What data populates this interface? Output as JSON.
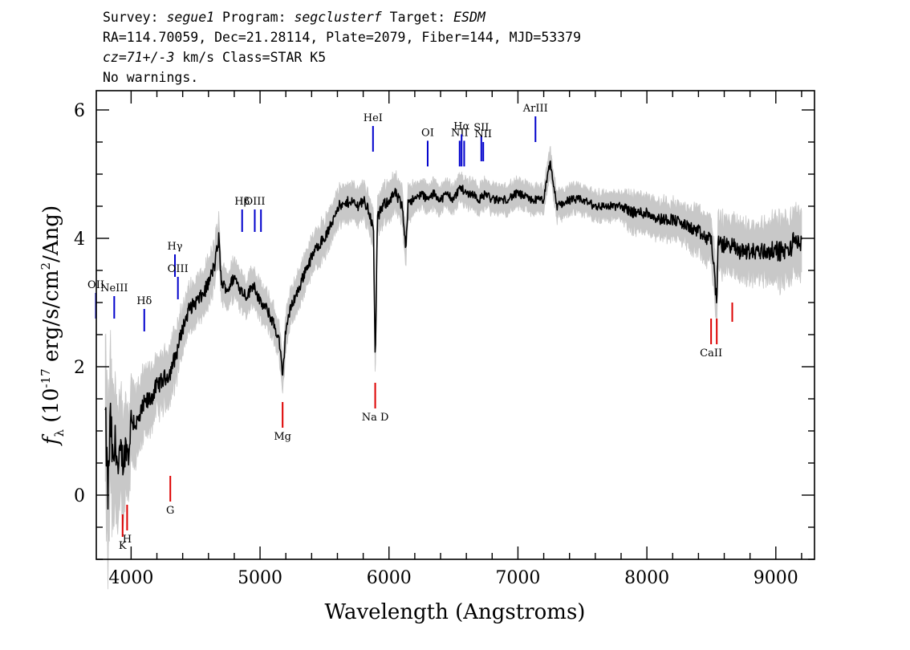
{
  "header": {
    "line1_parts": [
      "Survey: ",
      "segue1",
      " Program: ",
      "segclusterf",
      " Target: ",
      "ESDM"
    ],
    "line2": "RA=114.70059, Dec=21.28114, Plate=2079, Fiber=144, MJD=53379",
    "line3_parts": [
      "cz=71+/-3",
      " km/s Class=STAR K5"
    ],
    "line4": "No warnings."
  },
  "chart_data": {
    "type": "line",
    "xlabel": "Wavelength (Angstroms)",
    "ylabel": "f_λ (10^-17 erg/s/cm^2/Ang)",
    "xlim": [
      3730,
      9300
    ],
    "ylim": [
      -1,
      6.3
    ],
    "xticks": [
      4000,
      5000,
      6000,
      7000,
      8000,
      9000
    ],
    "yticks": [
      0,
      2,
      4,
      6
    ],
    "colors": {
      "flux": "#000000",
      "error_band": "#c8c8c8",
      "emission": "#0000cc",
      "absorption": "#dd0000"
    },
    "series": [
      {
        "role": "flux",
        "x": [
          3800,
          3820,
          3840,
          3860,
          3880,
          3900,
          3920,
          3940,
          3960,
          3980,
          4000,
          4050,
          4100,
          4150,
          4200,
          4250,
          4300,
          4350,
          4400,
          4450,
          4500,
          4550,
          4600,
          4650,
          4680,
          4700,
          4750,
          4800,
          4850,
          4900,
          4950,
          5000,
          5050,
          5100,
          5150,
          5175,
          5200,
          5250,
          5300,
          5350,
          5400,
          5450,
          5500,
          5550,
          5600,
          5650,
          5700,
          5750,
          5800,
          5850,
          5880,
          5893,
          5910,
          5950,
          6000,
          6050,
          6100,
          6130,
          6150,
          6200,
          6250,
          6300,
          6350,
          6400,
          6450,
          6500,
          6550,
          6600,
          6650,
          6700,
          6750,
          6800,
          6900,
          7000,
          7100,
          7200,
          7250,
          7300,
          7400,
          7500,
          7600,
          7700,
          7800,
          7900,
          8000,
          8100,
          8200,
          8300,
          8400,
          8450,
          8500,
          8542,
          8550,
          8600,
          8662,
          8700,
          8800,
          8900,
          9000,
          9100,
          9150,
          9200
        ],
        "y": [
          1.2,
          0.0,
          1.2,
          0.4,
          0.9,
          0.3,
          0.7,
          0.5,
          0.8,
          0.6,
          1.2,
          1.1,
          1.4,
          1.5,
          1.7,
          1.8,
          1.9,
          2.2,
          2.6,
          2.9,
          3.0,
          3.1,
          3.3,
          3.6,
          4.0,
          3.3,
          3.2,
          3.4,
          3.2,
          3.1,
          3.3,
          3.0,
          2.9,
          2.7,
          2.4,
          1.8,
          2.6,
          3.0,
          3.2,
          3.5,
          3.7,
          3.9,
          4.0,
          4.2,
          4.5,
          4.5,
          4.6,
          4.5,
          4.6,
          4.4,
          4.1,
          2.0,
          4.3,
          4.5,
          4.6,
          4.7,
          4.5,
          3.9,
          4.6,
          4.6,
          4.7,
          4.6,
          4.7,
          4.6,
          4.7,
          4.6,
          4.8,
          4.7,
          4.7,
          4.6,
          4.7,
          4.6,
          4.6,
          4.7,
          4.6,
          4.6,
          5.2,
          4.5,
          4.6,
          4.6,
          4.5,
          4.5,
          4.5,
          4.4,
          4.4,
          4.3,
          4.3,
          4.2,
          4.1,
          4.0,
          4.0,
          3.0,
          3.9,
          3.9,
          3.9,
          3.8,
          3.8,
          3.8,
          3.8,
          3.8,
          4.0,
          3.9
        ],
        "error": [
          0.9,
          0.9,
          0.8,
          0.8,
          0.7,
          0.7,
          0.6,
          0.6,
          0.5,
          0.5,
          0.45,
          0.4,
          0.35,
          0.35,
          0.3,
          0.3,
          0.3,
          0.3,
          0.25,
          0.25,
          0.25,
          0.25,
          0.25,
          0.25,
          0.25,
          0.2,
          0.2,
          0.2,
          0.2,
          0.2,
          0.2,
          0.2,
          0.2,
          0.2,
          0.2,
          0.2,
          0.2,
          0.2,
          0.2,
          0.2,
          0.2,
          0.2,
          0.2,
          0.2,
          0.2,
          0.2,
          0.2,
          0.2,
          0.2,
          0.2,
          0.2,
          0.2,
          0.2,
          0.2,
          0.2,
          0.2,
          0.2,
          0.2,
          0.2,
          0.15,
          0.15,
          0.15,
          0.15,
          0.15,
          0.15,
          0.15,
          0.15,
          0.15,
          0.15,
          0.15,
          0.15,
          0.15,
          0.15,
          0.15,
          0.15,
          0.15,
          0.15,
          0.15,
          0.15,
          0.15,
          0.15,
          0.15,
          0.15,
          0.2,
          0.2,
          0.2,
          0.2,
          0.2,
          0.25,
          0.25,
          0.25,
          0.3,
          0.3,
          0.3,
          0.3,
          0.3,
          0.3,
          0.3,
          0.35,
          0.35,
          0.35,
          0.35
        ]
      }
    ],
    "emission_lines": [
      {
        "label": "OII",
        "x": 3727,
        "y_top": 3.15,
        "y_bot": 2.75
      },
      {
        "label": "NeIII",
        "x": 3869,
        "y_top": 3.1,
        "y_bot": 2.75
      },
      {
        "label": "Hδ",
        "x": 4102,
        "y_top": 2.9,
        "y_bot": 2.55
      },
      {
        "label": "Hγ",
        "x": 4340,
        "y_top": 3.75,
        "y_bot": 3.4
      },
      {
        "label": "OIII",
        "x": 4363,
        "y_top": 3.4,
        "y_bot": 3.05
      },
      {
        "label": "Hβ",
        "x": 4861,
        "y_top": 4.45,
        "y_bot": 4.1
      },
      {
        "label": "OIII",
        "x": 4959,
        "y_top": 4.45,
        "y_bot": 4.1
      },
      {
        "label": "",
        "x": 5007,
        "y_top": 4.45,
        "y_bot": 4.1
      },
      {
        "label": "HeI",
        "x": 5876,
        "y_top": 5.75,
        "y_bot": 5.35
      },
      {
        "label": "OI",
        "x": 6300,
        "y_top": 5.52,
        "y_bot": 5.12
      },
      {
        "label": "NII",
        "x": 6548,
        "y_top": 5.52,
        "y_bot": 5.12
      },
      {
        "label": "Hα",
        "x": 6563,
        "y_top": 5.62,
        "y_bot": 5.12
      },
      {
        "label": "",
        "x": 6583,
        "y_top": 5.52,
        "y_bot": 5.12
      },
      {
        "label": "SII",
        "x": 6716,
        "y_top": 5.6,
        "y_bot": 5.2
      },
      {
        "label": "NII",
        "x": 6731,
        "y_top": 5.5,
        "y_bot": 5.2
      },
      {
        "label": "ArIII",
        "x": 7136,
        "y_top": 5.9,
        "y_bot": 5.5
      }
    ],
    "absorption_lines": [
      {
        "label": "K",
        "x": 3934,
        "y_top": -0.3,
        "y_bot": -0.65
      },
      {
        "label": "H",
        "x": 3969,
        "y_top": -0.15,
        "y_bot": -0.55
      },
      {
        "label": "G",
        "x": 4304,
        "y_top": 0.3,
        "y_bot": -0.1
      },
      {
        "label": "Mg",
        "x": 5175,
        "y_top": 1.45,
        "y_bot": 1.05
      },
      {
        "label": "Na D",
        "x": 5893,
        "y_top": 1.75,
        "y_bot": 1.35
      },
      {
        "label": "CaII",
        "x": 8498,
        "y_top": 2.75,
        "y_bot": 2.35
      },
      {
        "label": "",
        "x": 8542,
        "y_top": 2.75,
        "y_bot": 2.35
      },
      {
        "label": "",
        "x": 8662,
        "y_top": 3.0,
        "y_bot": 2.7
      }
    ]
  }
}
